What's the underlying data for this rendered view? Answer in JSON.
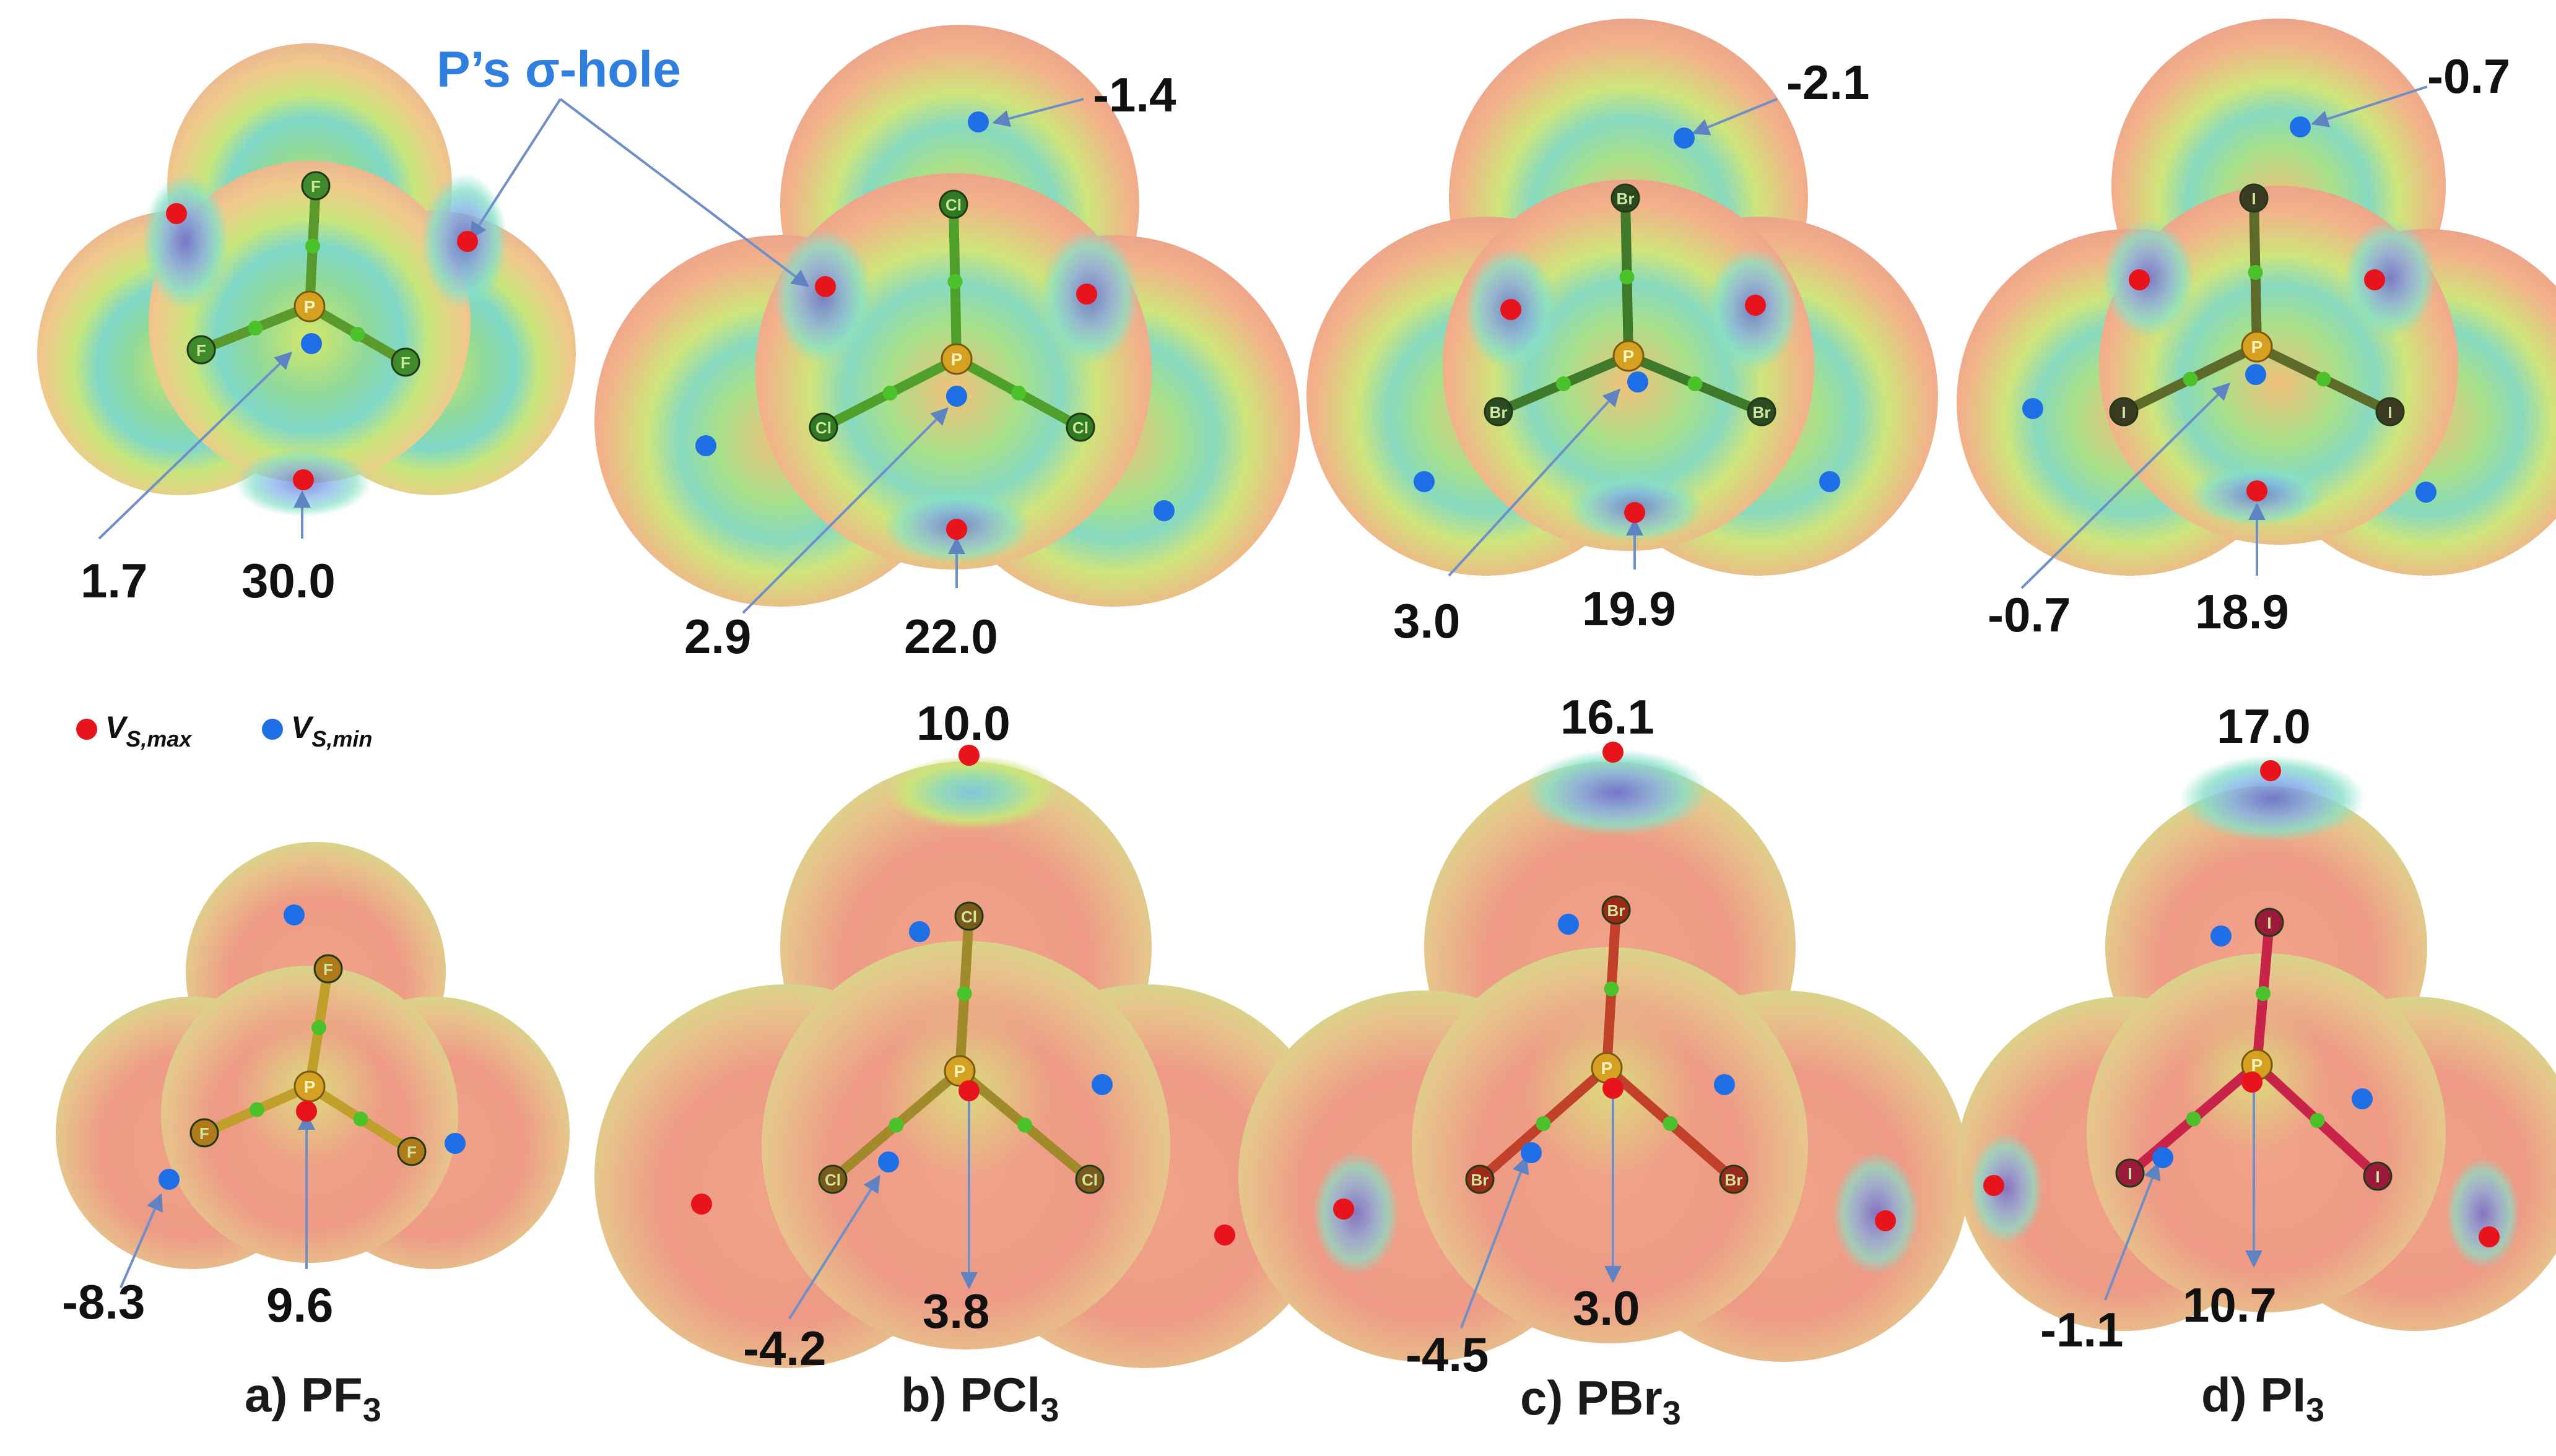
{
  "legend": {
    "max_symbol": "V",
    "max_subscript": "S,max",
    "min_symbol": "V",
    "min_subscript": "S,min",
    "max_color": "#e8141c",
    "min_color": "#1e6fe6"
  },
  "sigma_hole_label": "P’s σ-hole",
  "top_row": {
    "pf3": {
      "center_value": "1.7",
      "bottom_value": "30.0",
      "atom_labels": [
        "F",
        "F",
        "F",
        "P"
      ]
    },
    "pcl3": {
      "top_value": "-1.4",
      "center_value": "2.9",
      "bottom_value": "22.0",
      "atom_labels": [
        "Cl",
        "Cl",
        "Cl",
        "P"
      ]
    },
    "pbr3": {
      "top_value": "-2.1",
      "center_value": "3.0",
      "bottom_value": "19.9",
      "atom_labels": [
        "Br",
        "Br",
        "Br",
        "P"
      ]
    },
    "pi3": {
      "top_value": "-0.7",
      "center_value": "-0.7",
      "bottom_value": "18.9",
      "atom_labels": [
        "I",
        "I",
        "I",
        "P"
      ]
    }
  },
  "bottom_row": {
    "pf3": {
      "left_value": "-8.3",
      "center_value": "9.6",
      "atom_labels": [
        "F",
        "F",
        "F",
        "P"
      ]
    },
    "pcl3": {
      "top_value": "10.0",
      "left_value": "-4.2",
      "center_value": "3.8",
      "atom_labels": [
        "Cl",
        "Cl",
        "Cl",
        "P"
      ]
    },
    "pbr3": {
      "top_value": "16.1",
      "left_value": "-4.5",
      "center_value": "3.0",
      "atom_labels": [
        "Br",
        "Br",
        "Br",
        "P"
      ]
    },
    "pi3": {
      "top_value": "17.0",
      "left_value": "-1.1",
      "center_value": "10.7",
      "atom_labels": [
        "I",
        "I",
        "I",
        "P"
      ]
    }
  },
  "captions": [
    {
      "prefix": "a) PF",
      "subscript": "3"
    },
    {
      "prefix": "b) PCl",
      "subscript": "3"
    },
    {
      "prefix": "c) PBr",
      "subscript": "3"
    },
    {
      "prefix": "d) PI",
      "subscript": "3"
    }
  ]
}
